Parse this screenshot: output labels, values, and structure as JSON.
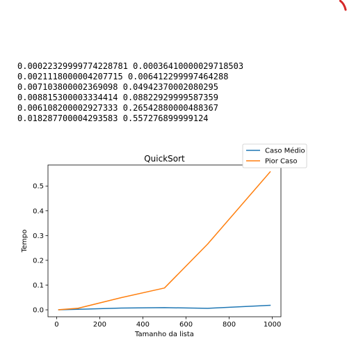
{
  "output_lines": [
    "0.00022329999774228781 0.00036410000029718503",
    "0.0021118000004207715 0.006412299997464288",
    "0.007103800002369098 0.04942370002080295",
    "0.008815300003334414 0.08822929999587359",
    "0.006108200002927333 0.26542880000488367",
    "0.018287700004293583 0.557276899999124"
  ],
  "corner_mark_color": "#d62728",
  "chart_data": {
    "type": "line",
    "title": "QuickSort",
    "xlabel": "Tamanho da lista",
    "ylabel": "Tempo",
    "xlim": [
      -40,
      1040
    ],
    "ylim": [
      -0.028,
      0.585
    ],
    "xticks": [
      0,
      200,
      400,
      600,
      800,
      1000
    ],
    "yticks": [
      0.0,
      0.1,
      0.2,
      0.3,
      0.4,
      0.5
    ],
    "legend": "top-right",
    "grid": false,
    "x": [
      10,
      100,
      300,
      500,
      700,
      990
    ],
    "series": [
      {
        "name": "Caso Médio",
        "color": "#1f77b4",
        "values": [
          0.00022329999774228781,
          0.0021118000004207715,
          0.007103800002369098,
          0.008815300003334414,
          0.006108200002927333,
          0.018287700004293583
        ]
      },
      {
        "name": "Pior Caso",
        "color": "#ff7f0e",
        "values": [
          0.00036410000029718503,
          0.006412299997464288,
          0.04942370002080295,
          0.08822929999587359,
          0.26542880000488367,
          0.557276899999124
        ]
      }
    ]
  }
}
